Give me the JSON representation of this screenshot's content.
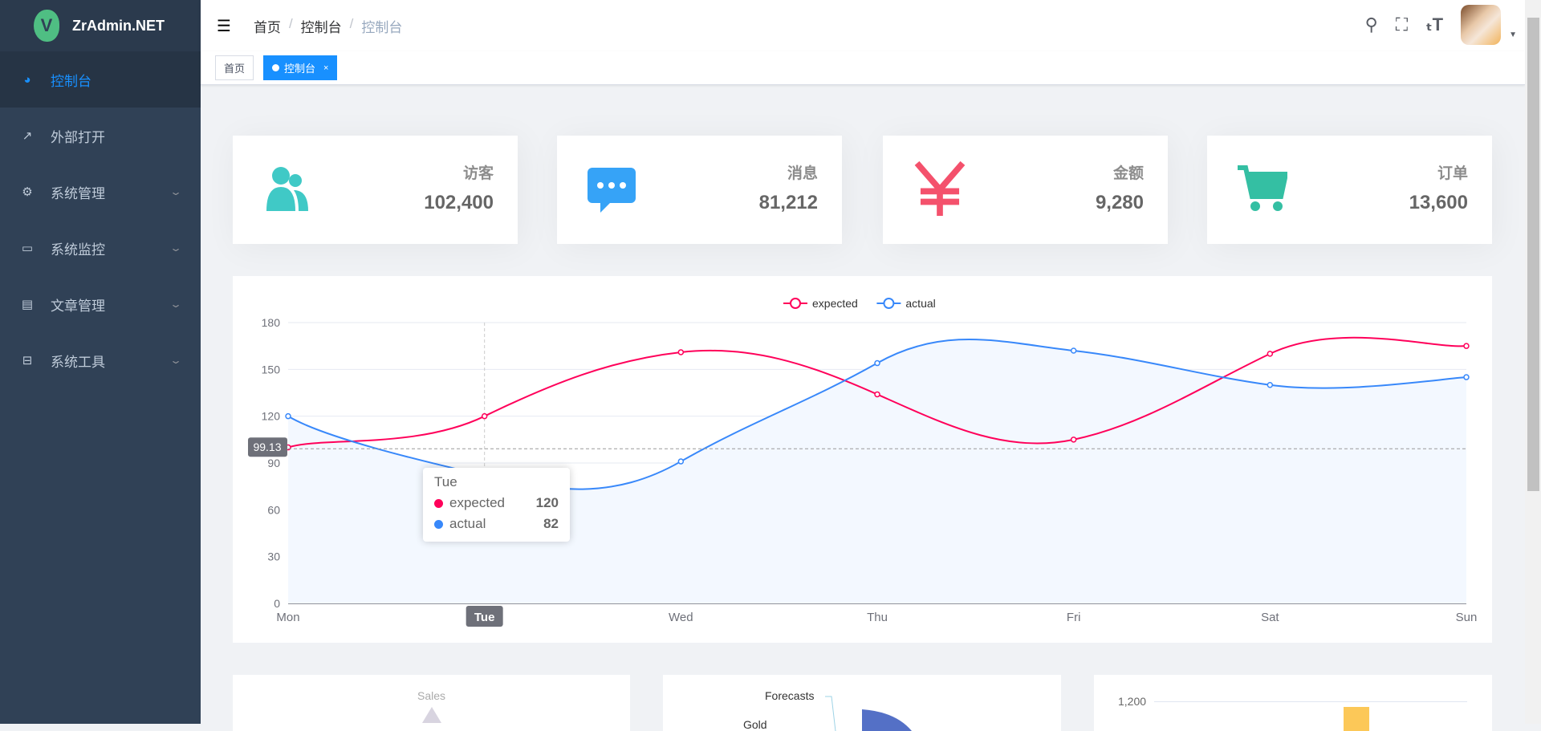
{
  "app": {
    "title": "ZrAdmin.NET"
  },
  "sidebar": {
    "items": [
      {
        "label": "控制台",
        "icon": "dashboard-icon",
        "active": true
      },
      {
        "label": "外部打开",
        "icon": "external-link-icon"
      },
      {
        "label": "系统管理",
        "icon": "gear-icon",
        "expandable": true
      },
      {
        "label": "系统监控",
        "icon": "monitor-icon",
        "expandable": true
      },
      {
        "label": "文章管理",
        "icon": "document-icon",
        "expandable": true
      },
      {
        "label": "系统工具",
        "icon": "toolbox-icon",
        "expandable": true
      }
    ]
  },
  "header": {
    "breadcrumb": [
      "首页",
      "控制台",
      "控制台"
    ],
    "icons": [
      "search-icon",
      "fullscreen-icon",
      "font-size-icon",
      "avatar",
      "caret-down-icon"
    ]
  },
  "tags": [
    {
      "label": "首页"
    },
    {
      "label": "控制台",
      "active": true,
      "close": "×"
    }
  ],
  "stats": [
    {
      "label": "访客",
      "value": "102,400",
      "color": "#40c9c6",
      "icon": "people-icon"
    },
    {
      "label": "消息",
      "value": "81,212",
      "color": "#36a3f7",
      "icon": "message-icon"
    },
    {
      "label": "金额",
      "value": "9,280",
      "color": "#f4516c",
      "icon": "yen-icon"
    },
    {
      "label": "订单",
      "value": "13,600",
      "color": "#34bfa3",
      "icon": "shopping-cart-icon"
    }
  ],
  "chart_data": {
    "type": "line",
    "categories": [
      "Mon",
      "Tue",
      "Wed",
      "Thu",
      "Fri",
      "Sat",
      "Sun"
    ],
    "series": [
      {
        "name": "expected",
        "values": [
          100,
          120,
          161,
          134,
          105,
          160,
          165
        ],
        "color": "#ff005a"
      },
      {
        "name": "actual",
        "values": [
          120,
          82,
          91,
          154,
          162,
          140,
          145
        ],
        "color": "#3888fa",
        "area": true
      }
    ],
    "ylim": [
      0,
      180
    ],
    "yticks": [
      "0",
      "30",
      "60",
      "90",
      "120",
      "150",
      "180"
    ],
    "legend": "top-center",
    "grid": true,
    "crosshair": {
      "x_label": "Tue",
      "y_label": "99.13",
      "y": 99.13
    },
    "tooltip": {
      "title": "Tue",
      "rows": [
        {
          "name": "expected",
          "value": "120"
        },
        {
          "name": "actual",
          "value": "82"
        }
      ]
    }
  },
  "bottom": {
    "radar_title": "Sales",
    "pie_label_1": "Forecasts",
    "pie_label_2": "Gold",
    "bar_tick": "1,200"
  }
}
